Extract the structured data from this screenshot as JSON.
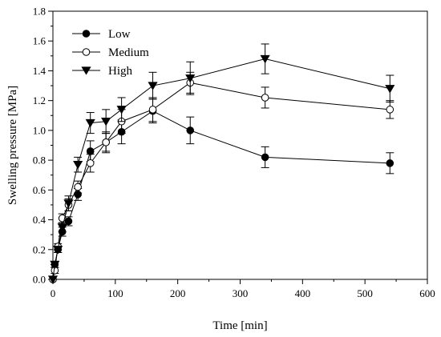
{
  "chart_data": {
    "type": "line",
    "title": "",
    "xlabel": "Time [min]",
    "ylabel": "Swelling pressure [MPa]",
    "xlim": [
      0,
      600
    ],
    "ylim": [
      0.0,
      1.8
    ],
    "xticks": [
      0,
      100,
      200,
      300,
      400,
      500,
      600
    ],
    "yticks": [
      "0.0",
      "0.2",
      "0.4",
      "0.6",
      "0.8",
      "1.0",
      "1.2",
      "1.4",
      "1.6",
      "1.8"
    ],
    "grid": false,
    "legend": "top-left",
    "series": [
      {
        "name": "Low",
        "marker": "filled-circle",
        "x": [
          0,
          3,
          8,
          15,
          25,
          40,
          60,
          85,
          110,
          160,
          220,
          340,
          540
        ],
        "y": [
          0.0,
          0.1,
          0.2,
          0.32,
          0.39,
          0.57,
          0.86,
          0.92,
          0.99,
          1.13,
          1.0,
          0.82,
          0.78
        ],
        "err": [
          0,
          0.02,
          0.02,
          0.03,
          0.03,
          0.04,
          0.07,
          0.06,
          0.08,
          0.08,
          0.09,
          0.07,
          0.07
        ]
      },
      {
        "name": "Medium",
        "marker": "open-circle",
        "x": [
          0,
          3,
          8,
          15,
          25,
          40,
          60,
          85,
          110,
          160,
          220,
          340,
          540
        ],
        "y": [
          0.0,
          0.06,
          0.22,
          0.41,
          0.5,
          0.62,
          0.78,
          0.92,
          1.06,
          1.14,
          1.32,
          1.22,
          1.14
        ],
        "err": [
          0,
          0.02,
          0.02,
          0.03,
          0.04,
          0.04,
          0.06,
          0.07,
          0.08,
          0.08,
          0.07,
          0.07,
          0.06
        ]
      },
      {
        "name": "High",
        "marker": "filled-triangle-down",
        "x": [
          0,
          3,
          8,
          15,
          25,
          40,
          60,
          85,
          110,
          160,
          220,
          340,
          540
        ],
        "y": [
          0.0,
          0.1,
          0.2,
          0.35,
          0.51,
          0.77,
          1.05,
          1.06,
          1.14,
          1.3,
          1.35,
          1.48,
          1.28
        ],
        "err": [
          0,
          0.02,
          0.02,
          0.03,
          0.05,
          0.05,
          0.07,
          0.08,
          0.08,
          0.09,
          0.11,
          0.1,
          0.09
        ]
      }
    ]
  }
}
